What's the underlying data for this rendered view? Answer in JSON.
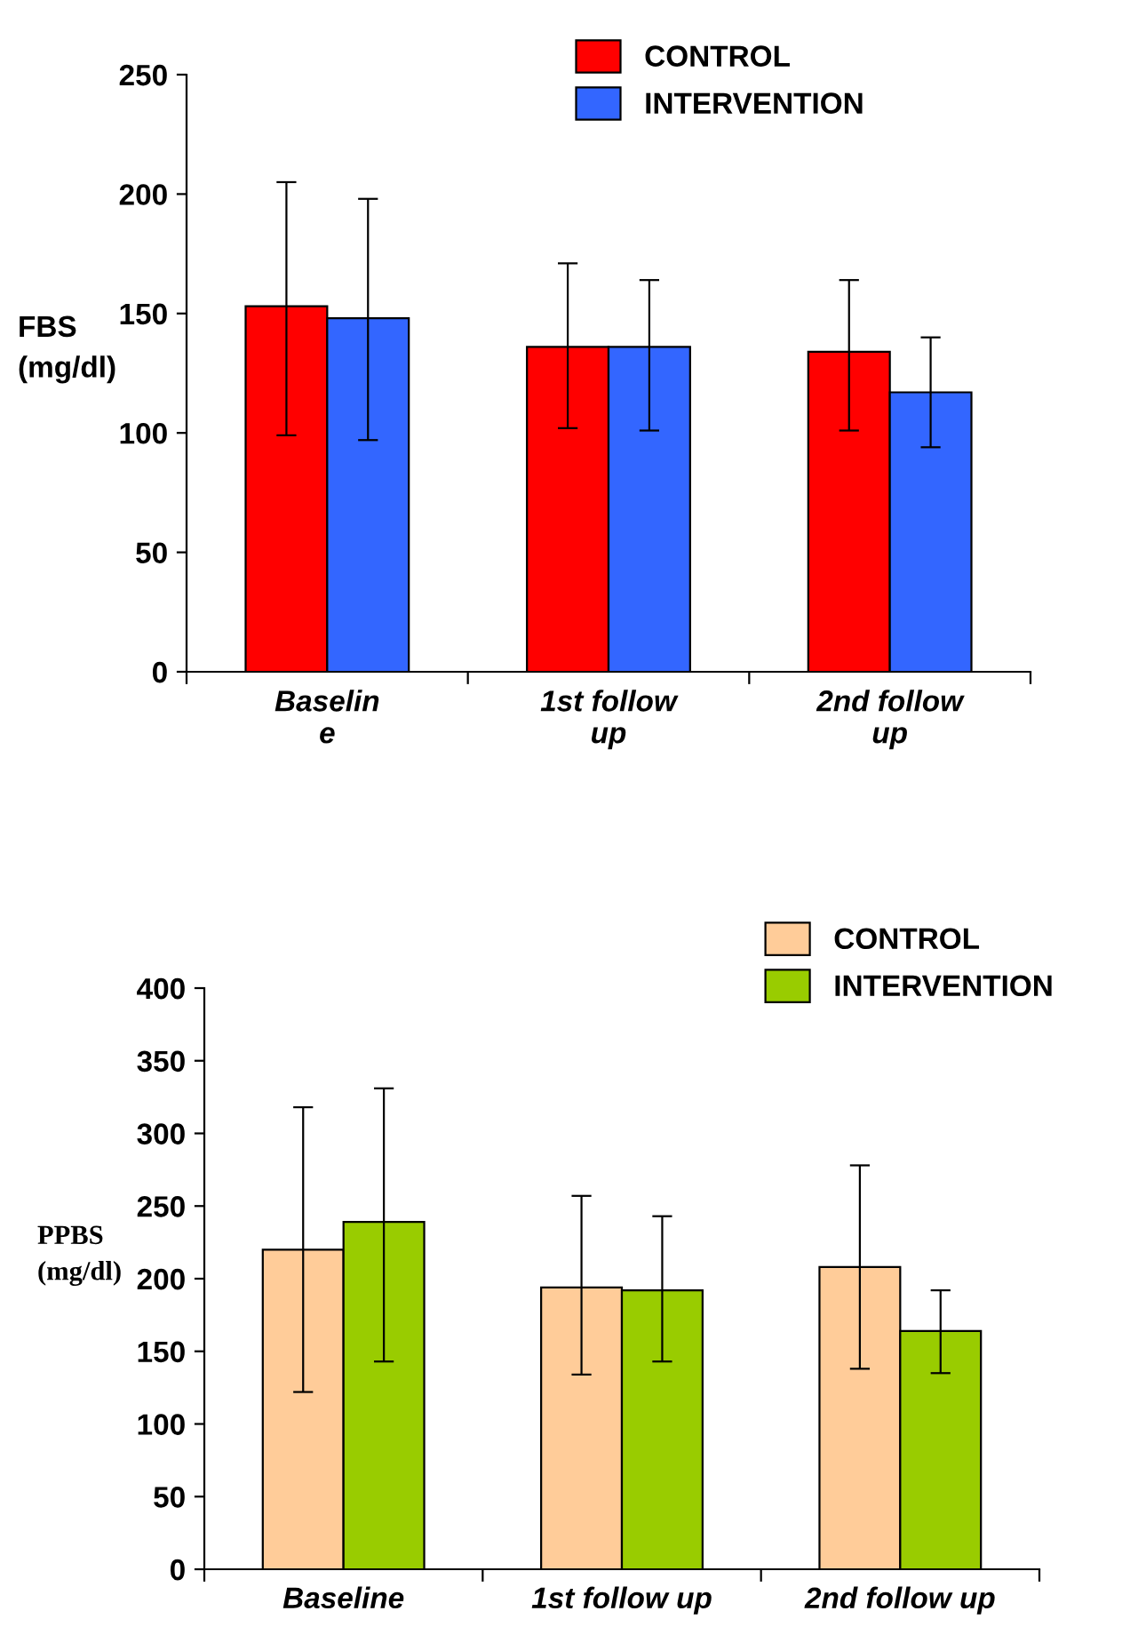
{
  "chart_data": [
    {
      "type": "bar",
      "ylabel": "FBS\n(mg/dl)",
      "categories": [
        "Baselin\ne",
        "1st follow\nup",
        "2nd follow\nup"
      ],
      "ylim": [
        0,
        250
      ],
      "yticks": [
        0,
        50,
        100,
        150,
        200,
        250
      ],
      "legend": "top right",
      "grid": false,
      "series": [
        {
          "name": "CONTROL",
          "color": "#ff0000",
          "values": [
            153,
            136,
            134
          ],
          "errors": [
            [
              99,
              205
            ],
            [
              102,
              171
            ],
            [
              101,
              164
            ]
          ]
        },
        {
          "name": "INTERVENTION",
          "color": "#3366ff",
          "values": [
            148,
            136,
            117
          ],
          "errors": [
            [
              97,
              198
            ],
            [
              101,
              164
            ],
            [
              94,
              140
            ]
          ]
        }
      ]
    },
    {
      "type": "bar",
      "ylabel": "PPBS\n(mg/dl)",
      "categories": [
        "Baseline",
        "1st follow up",
        "2nd follow up"
      ],
      "ylim": [
        0,
        400
      ],
      "yticks": [
        0,
        50,
        100,
        150,
        200,
        250,
        300,
        350,
        400
      ],
      "legend": "top right",
      "grid": false,
      "series": [
        {
          "name": "CONTROL",
          "color": "#ffcc99",
          "values": [
            220,
            194,
            208
          ],
          "errors": [
            [
              122,
              318
            ],
            [
              134,
              257
            ],
            [
              138,
              278
            ]
          ]
        },
        {
          "name": "INTERVENTION",
          "color": "#99cc00",
          "values": [
            239,
            192,
            164
          ],
          "errors": [
            [
              143,
              331
            ],
            [
              143,
              243
            ],
            [
              135,
              192
            ]
          ]
        }
      ]
    }
  ]
}
